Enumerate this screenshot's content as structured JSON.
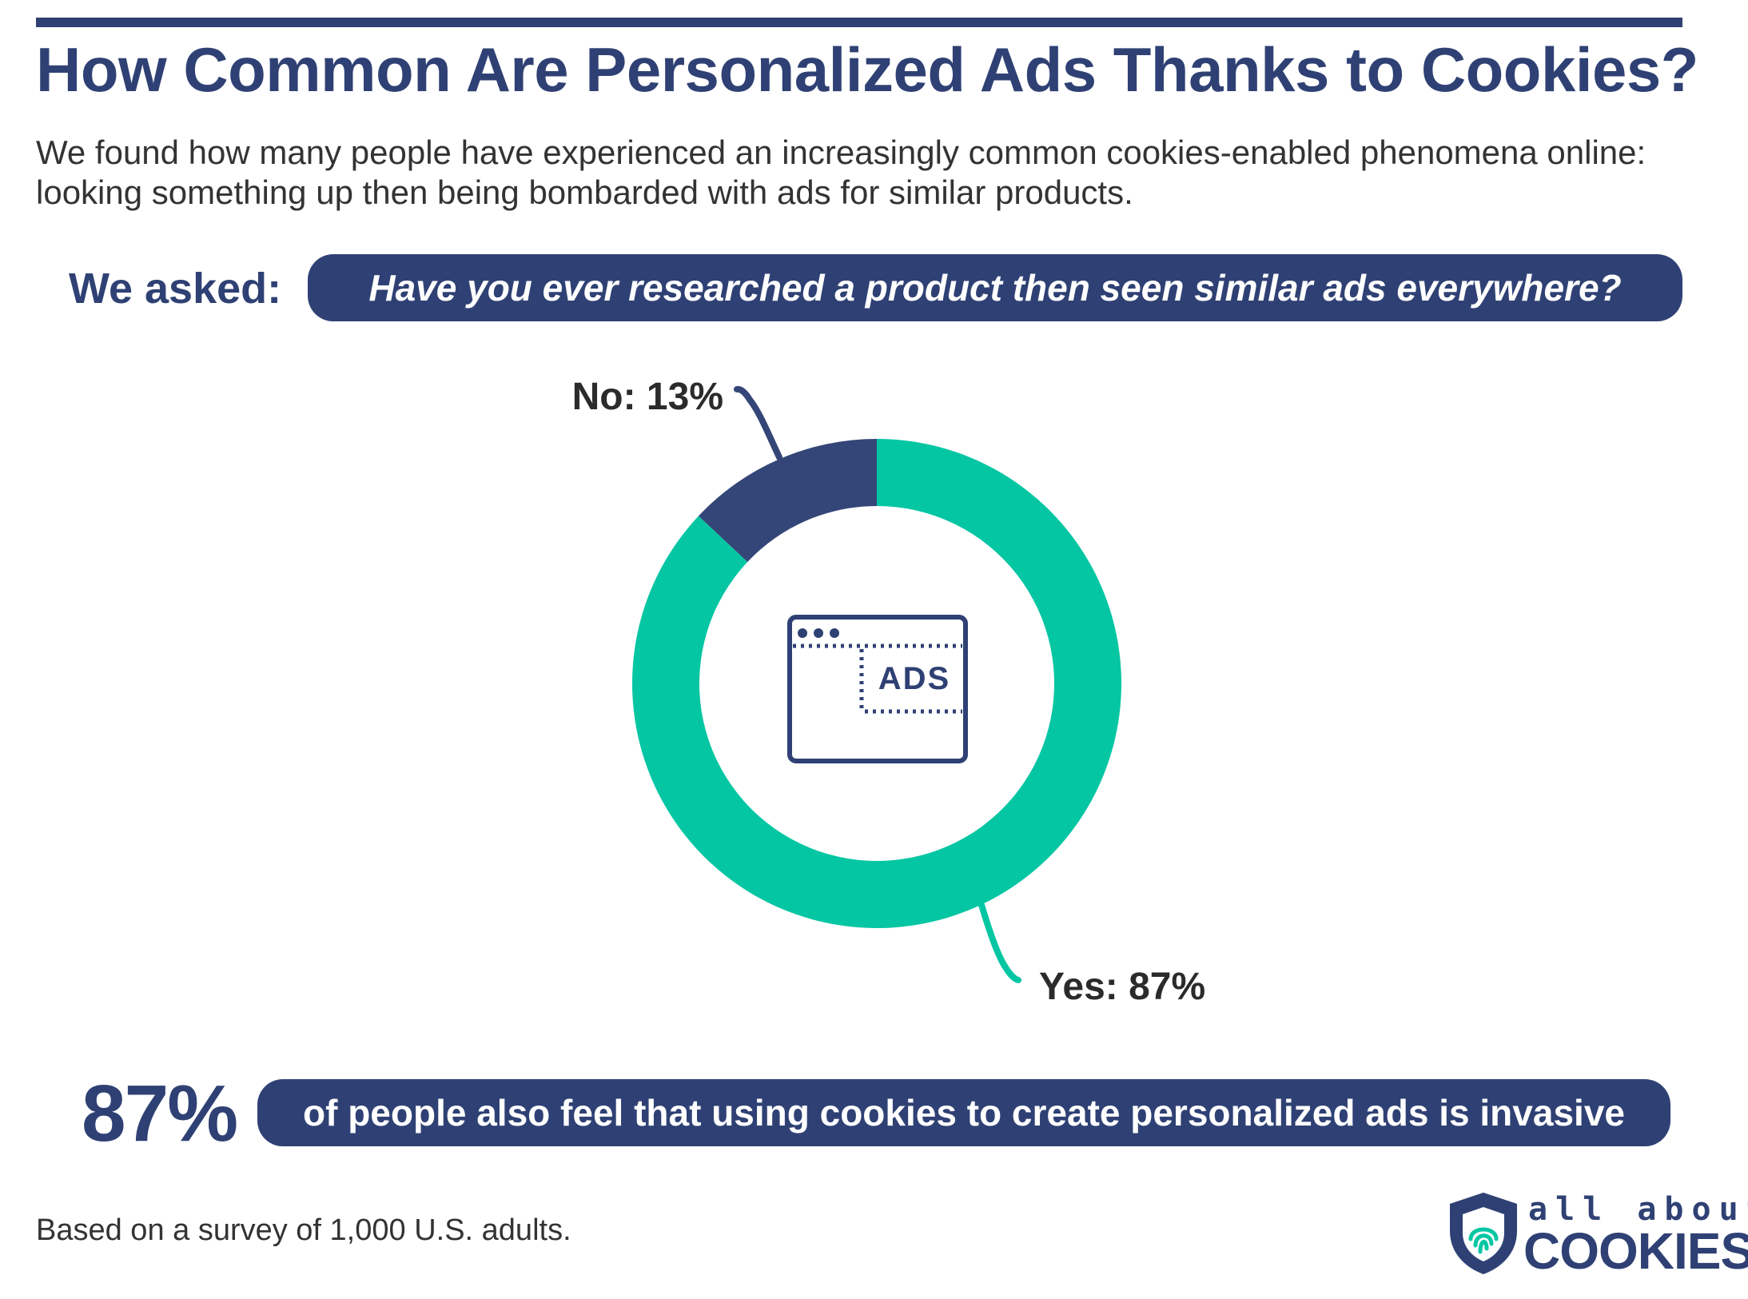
{
  "header": {
    "title": "How Common Are Personalized Ads Thanks to Cookies?",
    "subtitle": "We found how many people have experienced an increasingly common cookies-enabled phenomena online: looking something up then being bombarded with ads for similar products."
  },
  "question": {
    "label": "We asked:",
    "text": "Have you ever researched a product then seen similar ads everywhere?"
  },
  "chart_data": {
    "type": "pie",
    "donut": true,
    "slices": [
      {
        "label": "No: 13%",
        "category": "No",
        "value": 13,
        "color": "#344677"
      },
      {
        "label": "Yes: 87%",
        "category": "Yes",
        "value": 87,
        "color": "#05c6a3"
      }
    ],
    "center_icon": "browser-ads-icon",
    "center_icon_text": "ADS"
  },
  "stat": {
    "value": "87%",
    "text": "of people also feel that using cookies to create personalized ads is invasive"
  },
  "footnote": "Based on a survey of 1,000 U.S. adults.",
  "logo": {
    "top": "all about",
    "bottom": "COOKIES",
    "icon": "shield-fingerprint-icon"
  },
  "colors": {
    "navy": "#2f4174",
    "teal": "#05c6a3"
  }
}
